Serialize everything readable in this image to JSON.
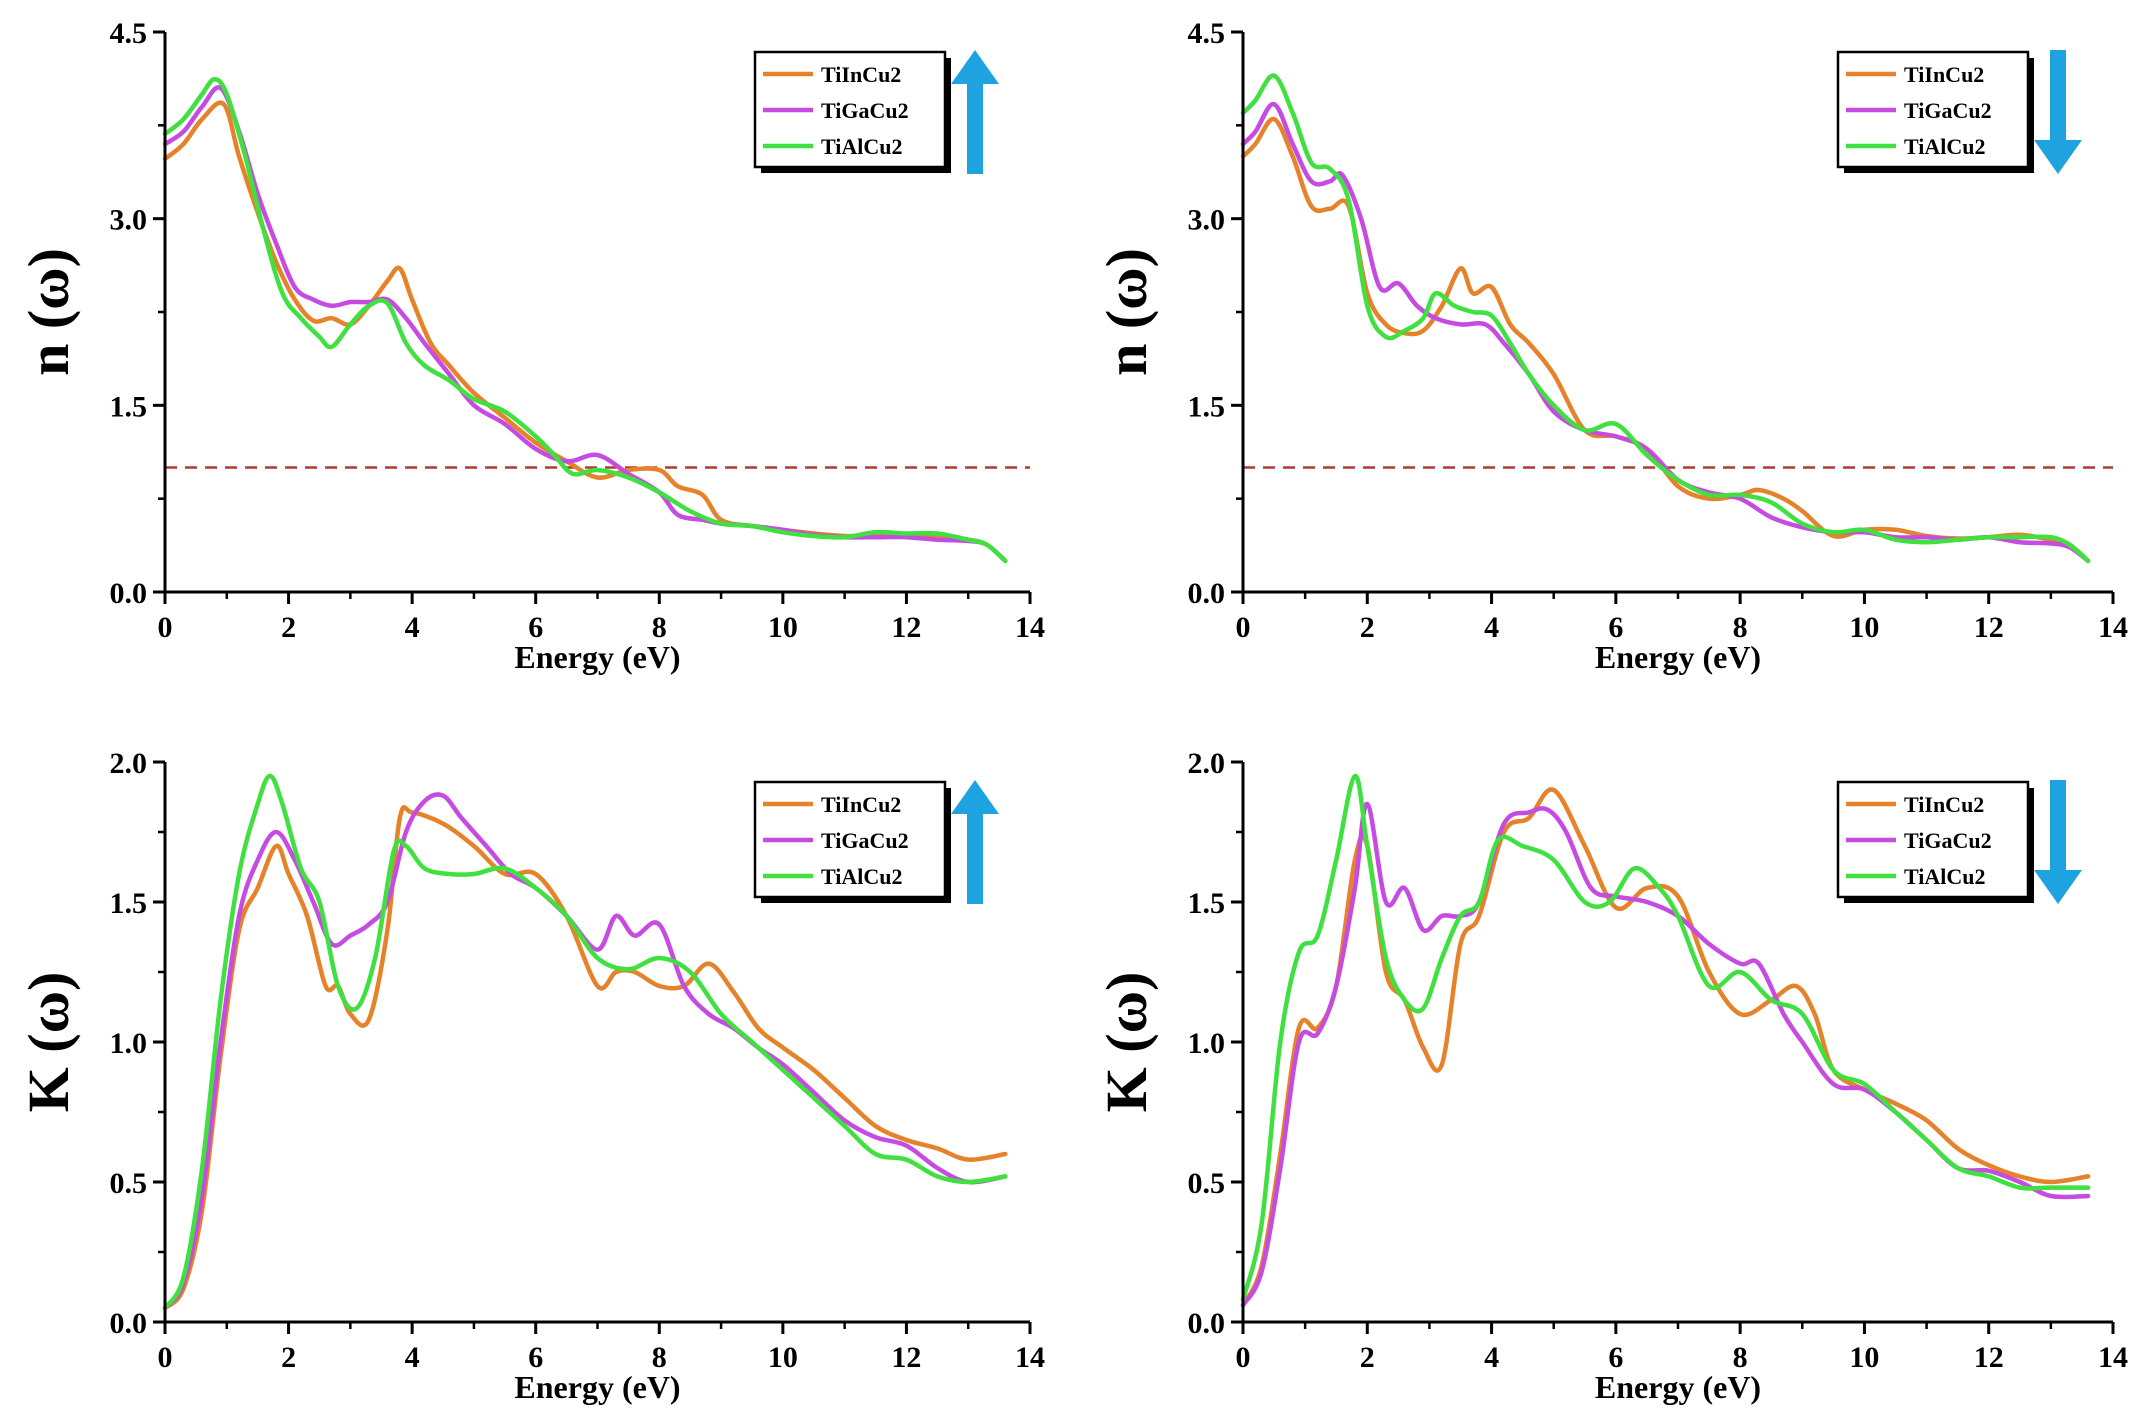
{
  "colors": {
    "TiInCu2": "#E5822A",
    "TiGaCu2": "#C64BE0",
    "TiAlCu2": "#3FE03F",
    "arrow": "#1FA3E0",
    "refline": "#B03A2E"
  },
  "chart_data": [
    {
      "type": "line",
      "id": "n-up",
      "spin": "up",
      "ylabel": "n (ω)",
      "xlabel": "Energy (eV)",
      "xlim": [
        0,
        14
      ],
      "ylim": [
        0,
        4.5
      ],
      "xticks": [
        "0",
        "2",
        "4",
        "6",
        "8",
        "10",
        "12",
        "14"
      ],
      "yticks": [
        "0.0",
        "1.5",
        "3.0",
        "4.5"
      ],
      "ref_line": 1.0,
      "series": [
        {
          "name": "TiInCu2",
          "color": "#E5822A",
          "x": [
            0,
            0.3,
            0.6,
            0.95,
            1.2,
            1.5,
            1.8,
            2.1,
            2.4,
            2.7,
            3.0,
            3.3,
            3.6,
            3.8,
            4.0,
            4.3,
            4.6,
            5.0,
            5.5,
            6.0,
            6.5,
            7.0,
            7.5,
            8.0,
            8.3,
            8.7,
            9.0,
            9.5,
            10,
            10.5,
            11,
            11.5,
            12,
            12.5,
            13,
            13.3,
            13.6
          ],
          "y": [
            3.48,
            3.6,
            3.8,
            3.92,
            3.5,
            3.05,
            2.65,
            2.35,
            2.18,
            2.2,
            2.15,
            2.3,
            2.5,
            2.6,
            2.35,
            2.0,
            1.82,
            1.6,
            1.4,
            1.2,
            1.05,
            0.92,
            0.98,
            0.98,
            0.85,
            0.78,
            0.58,
            0.53,
            0.5,
            0.47,
            0.45,
            0.45,
            0.45,
            0.44,
            0.42,
            0.38,
            0.25
          ]
        },
        {
          "name": "TiGaCu2",
          "color": "#C64BE0",
          "x": [
            0,
            0.3,
            0.6,
            0.9,
            1.2,
            1.5,
            1.8,
            2.1,
            2.4,
            2.7,
            3.0,
            3.3,
            3.6,
            3.9,
            4.2,
            4.6,
            5.0,
            5.5,
            6.0,
            6.5,
            7.0,
            7.5,
            8.0,
            8.3,
            8.7,
            9.0,
            9.5,
            10,
            10.5,
            11,
            11.5,
            12,
            12.5,
            13,
            13.3,
            13.6
          ],
          "y": [
            3.6,
            3.7,
            3.9,
            4.05,
            3.7,
            3.2,
            2.8,
            2.45,
            2.35,
            2.3,
            2.33,
            2.33,
            2.35,
            2.2,
            2.0,
            1.75,
            1.5,
            1.35,
            1.15,
            1.05,
            1.1,
            0.95,
            0.8,
            0.62,
            0.58,
            0.55,
            0.53,
            0.5,
            0.46,
            0.44,
            0.44,
            0.44,
            0.42,
            0.41,
            0.38,
            0.25
          ]
        },
        {
          "name": "TiAlCu2",
          "color": "#3FE03F",
          "x": [
            0,
            0.3,
            0.6,
            0.8,
            1.0,
            1.3,
            1.6,
            1.9,
            2.2,
            2.5,
            2.7,
            3.0,
            3.3,
            3.6,
            3.9,
            4.2,
            4.6,
            5.0,
            5.5,
            6.0,
            6.3,
            6.6,
            7.0,
            7.5,
            8.0,
            8.5,
            9.0,
            9.5,
            10,
            10.5,
            11,
            11.5,
            12,
            12.5,
            13,
            13.3,
            13.6
          ],
          "y": [
            3.68,
            3.8,
            4.0,
            4.12,
            4.0,
            3.5,
            2.9,
            2.4,
            2.2,
            2.05,
            1.97,
            2.15,
            2.3,
            2.32,
            2.0,
            1.82,
            1.7,
            1.55,
            1.45,
            1.25,
            1.1,
            0.95,
            0.98,
            0.92,
            0.8,
            0.65,
            0.55,
            0.53,
            0.48,
            0.45,
            0.44,
            0.48,
            0.47,
            0.47,
            0.42,
            0.38,
            0.25
          ]
        }
      ]
    },
    {
      "type": "line",
      "id": "n-down",
      "spin": "down",
      "ylabel": "n (ω)",
      "xlabel": "Energy (eV)",
      "xlim": [
        0,
        14
      ],
      "ylim": [
        0,
        4.5
      ],
      "xticks": [
        "0",
        "2",
        "4",
        "6",
        "8",
        "10",
        "12",
        "14"
      ],
      "yticks": [
        "0.0",
        "1.5",
        "3.0",
        "4.5"
      ],
      "ref_line": 1.0,
      "series": [
        {
          "name": "TiInCu2",
          "color": "#E5822A",
          "x": [
            0,
            0.2,
            0.5,
            0.8,
            1.1,
            1.4,
            1.7,
            2.0,
            2.3,
            2.6,
            2.9,
            3.2,
            3.5,
            3.7,
            4.0,
            4.3,
            4.6,
            5.0,
            5.5,
            6.0,
            6.5,
            7.0,
            7.5,
            8.0,
            8.3,
            8.7,
            9.0,
            9.5,
            10,
            10.5,
            11,
            11.5,
            12,
            12.5,
            13,
            13.3,
            13.6
          ],
          "y": [
            3.5,
            3.6,
            3.8,
            3.5,
            3.1,
            3.08,
            3.1,
            2.4,
            2.15,
            2.08,
            2.1,
            2.3,
            2.6,
            2.4,
            2.45,
            2.15,
            2.0,
            1.75,
            1.3,
            1.25,
            1.15,
            0.85,
            0.75,
            0.78,
            0.82,
            0.75,
            0.65,
            0.45,
            0.5,
            0.5,
            0.45,
            0.43,
            0.44,
            0.46,
            0.42,
            0.38,
            0.25
          ]
        },
        {
          "name": "TiGaCu2",
          "color": "#C64BE0",
          "x": [
            0,
            0.2,
            0.5,
            0.8,
            1.1,
            1.4,
            1.6,
            1.9,
            2.2,
            2.5,
            2.8,
            3.1,
            3.5,
            3.9,
            4.2,
            4.6,
            5.0,
            5.5,
            6.0,
            6.5,
            7.0,
            7.5,
            8.0,
            8.5,
            9.0,
            9.5,
            10,
            10.5,
            11,
            11.5,
            12,
            12.5,
            13,
            13.3,
            13.6
          ],
          "y": [
            3.6,
            3.7,
            3.92,
            3.6,
            3.3,
            3.3,
            3.35,
            3.0,
            2.45,
            2.48,
            2.3,
            2.2,
            2.15,
            2.15,
            2.0,
            1.75,
            1.45,
            1.3,
            1.25,
            1.15,
            0.9,
            0.8,
            0.75,
            0.6,
            0.52,
            0.48,
            0.48,
            0.44,
            0.44,
            0.42,
            0.44,
            0.4,
            0.39,
            0.36,
            0.25
          ]
        },
        {
          "name": "TiAlCu2",
          "color": "#3FE03F",
          "x": [
            0,
            0.2,
            0.5,
            0.8,
            1.1,
            1.4,
            1.7,
            2.0,
            2.3,
            2.6,
            2.9,
            3.1,
            3.4,
            3.7,
            4.0,
            4.3,
            4.6,
            5.0,
            5.5,
            6.0,
            6.5,
            7.0,
            7.5,
            8.0,
            8.5,
            9.0,
            9.5,
            10,
            10.5,
            11,
            11.5,
            12,
            12.5,
            13,
            13.3,
            13.6
          ],
          "y": [
            3.85,
            3.95,
            4.15,
            3.85,
            3.45,
            3.4,
            3.15,
            2.3,
            2.05,
            2.1,
            2.2,
            2.4,
            2.3,
            2.25,
            2.22,
            2.0,
            1.75,
            1.5,
            1.3,
            1.35,
            1.1,
            0.9,
            0.78,
            0.78,
            0.72,
            0.55,
            0.48,
            0.5,
            0.42,
            0.4,
            0.42,
            0.44,
            0.44,
            0.44,
            0.38,
            0.25
          ]
        }
      ]
    },
    {
      "type": "line",
      "id": "k-up",
      "spin": "up",
      "ylabel": "K (ω)",
      "xlabel": "Energy (eV)",
      "xlim": [
        0,
        14
      ],
      "ylim": [
        0,
        2.0
      ],
      "xticks": [
        "0",
        "2",
        "4",
        "6",
        "8",
        "10",
        "12",
        "14"
      ],
      "yticks": [
        "0.0",
        "0.5",
        "1.0",
        "1.5",
        "2.0"
      ],
      "series": [
        {
          "name": "TiInCu2",
          "color": "#E5822A",
          "x": [
            0,
            0.3,
            0.6,
            0.9,
            1.2,
            1.5,
            1.8,
            2.0,
            2.3,
            2.6,
            2.8,
            3.0,
            3.3,
            3.6,
            3.8,
            4.0,
            4.5,
            5.0,
            5.5,
            6.0,
            6.5,
            7.0,
            7.3,
            7.6,
            8.0,
            8.4,
            8.8,
            9.2,
            9.6,
            10,
            10.5,
            11,
            11.5,
            12,
            12.5,
            13,
            13.6
          ],
          "y": [
            0.05,
            0.12,
            0.4,
            0.95,
            1.4,
            1.55,
            1.7,
            1.6,
            1.45,
            1.2,
            1.2,
            1.1,
            1.08,
            1.4,
            1.8,
            1.82,
            1.78,
            1.7,
            1.6,
            1.6,
            1.45,
            1.2,
            1.25,
            1.25,
            1.2,
            1.2,
            1.28,
            1.18,
            1.05,
            0.98,
            0.9,
            0.8,
            0.7,
            0.65,
            0.62,
            0.58,
            0.6
          ]
        },
        {
          "name": "TiGaCu2",
          "color": "#C64BE0",
          "x": [
            0,
            0.3,
            0.6,
            0.9,
            1.2,
            1.5,
            1.8,
            2.1,
            2.4,
            2.7,
            3.0,
            3.3,
            3.6,
            3.9,
            4.2,
            4.5,
            4.8,
            5.2,
            5.6,
            6.0,
            6.5,
            7.0,
            7.3,
            7.6,
            8.0,
            8.4,
            8.8,
            9.2,
            9.6,
            10,
            10.5,
            11,
            11.5,
            12,
            12.5,
            13,
            13.6
          ],
          "y": [
            0.05,
            0.14,
            0.45,
            1.0,
            1.45,
            1.65,
            1.75,
            1.65,
            1.5,
            1.35,
            1.38,
            1.42,
            1.5,
            1.75,
            1.86,
            1.88,
            1.8,
            1.7,
            1.6,
            1.55,
            1.45,
            1.33,
            1.45,
            1.38,
            1.42,
            1.2,
            1.1,
            1.05,
            0.98,
            0.92,
            0.82,
            0.72,
            0.66,
            0.63,
            0.55,
            0.5,
            0.52
          ]
        },
        {
          "name": "TiAlCu2",
          "color": "#3FE03F",
          "x": [
            0,
            0.3,
            0.6,
            0.9,
            1.2,
            1.5,
            1.7,
            1.9,
            2.2,
            2.5,
            2.8,
            3.1,
            3.4,
            3.7,
            3.9,
            4.2,
            4.6,
            5.0,
            5.5,
            6.0,
            6.5,
            7.0,
            7.5,
            8.0,
            8.5,
            9.0,
            9.5,
            10,
            10.5,
            11,
            11.5,
            12,
            12.5,
            13,
            13.6
          ],
          "y": [
            0.05,
            0.16,
            0.55,
            1.15,
            1.6,
            1.85,
            1.95,
            1.85,
            1.62,
            1.5,
            1.2,
            1.12,
            1.3,
            1.68,
            1.7,
            1.62,
            1.6,
            1.6,
            1.62,
            1.55,
            1.45,
            1.3,
            1.26,
            1.3,
            1.25,
            1.1,
            1.0,
            0.9,
            0.8,
            0.7,
            0.6,
            0.58,
            0.52,
            0.5,
            0.52
          ]
        }
      ]
    },
    {
      "type": "line",
      "id": "k-down",
      "spin": "down",
      "ylabel": "K (ω)",
      "xlabel": "Energy (eV)",
      "xlim": [
        0,
        14
      ],
      "ylim": [
        0,
        2.0
      ],
      "xticks": [
        "0",
        "2",
        "4",
        "6",
        "8",
        "10",
        "12",
        "14"
      ],
      "yticks": [
        "0.0",
        "0.5",
        "1.0",
        "1.5",
        "2.0"
      ],
      "series": [
        {
          "name": "TiInCu2",
          "color": "#E5822A",
          "x": [
            0,
            0.3,
            0.6,
            0.9,
            1.2,
            1.5,
            1.8,
            2.0,
            2.3,
            2.6,
            2.9,
            3.2,
            3.5,
            3.8,
            4.2,
            4.6,
            5.0,
            5.5,
            6.0,
            6.5,
            7.0,
            7.5,
            8.0,
            8.5,
            8.9,
            9.2,
            9.5,
            10,
            10.5,
            11,
            11.5,
            12,
            12.5,
            13,
            13.6
          ],
          "y": [
            0.06,
            0.2,
            0.6,
            1.05,
            1.05,
            1.2,
            1.65,
            1.7,
            1.25,
            1.15,
            0.98,
            0.92,
            1.35,
            1.45,
            1.75,
            1.8,
            1.9,
            1.7,
            1.48,
            1.55,
            1.52,
            1.25,
            1.1,
            1.15,
            1.2,
            1.1,
            0.9,
            0.83,
            0.78,
            0.72,
            0.62,
            0.56,
            0.52,
            0.5,
            0.52
          ]
        },
        {
          "name": "TiGaCu2",
          "color": "#C64BE0",
          "x": [
            0,
            0.3,
            0.6,
            0.9,
            1.2,
            1.5,
            1.8,
            2.0,
            2.3,
            2.6,
            2.9,
            3.2,
            3.5,
            3.8,
            4.2,
            4.6,
            4.9,
            5.2,
            5.6,
            6.0,
            6.5,
            7.0,
            7.5,
            8.0,
            8.3,
            8.7,
            9.0,
            9.5,
            10,
            10.5,
            11,
            11.5,
            12,
            12.5,
            13,
            13.6
          ],
          "y": [
            0.06,
            0.18,
            0.55,
            1.0,
            1.03,
            1.2,
            1.55,
            1.85,
            1.5,
            1.55,
            1.4,
            1.45,
            1.45,
            1.5,
            1.78,
            1.82,
            1.83,
            1.75,
            1.55,
            1.52,
            1.5,
            1.45,
            1.35,
            1.28,
            1.28,
            1.1,
            1.0,
            0.85,
            0.83,
            0.75,
            0.65,
            0.55,
            0.54,
            0.5,
            0.45,
            0.45
          ]
        },
        {
          "name": "TiAlCu2",
          "color": "#3FE03F",
          "x": [
            0,
            0.3,
            0.6,
            0.9,
            1.2,
            1.5,
            1.8,
            2.0,
            2.3,
            2.6,
            2.9,
            3.2,
            3.5,
            3.8,
            4.1,
            4.5,
            5.0,
            5.5,
            5.9,
            6.3,
            6.7,
            7.0,
            7.5,
            8.0,
            8.5,
            9.0,
            9.5,
            10,
            10.5,
            11,
            11.5,
            12,
            12.5,
            13,
            13.6
          ],
          "y": [
            0.08,
            0.35,
            1.0,
            1.32,
            1.38,
            1.65,
            1.95,
            1.7,
            1.3,
            1.15,
            1.12,
            1.3,
            1.45,
            1.5,
            1.72,
            1.7,
            1.65,
            1.5,
            1.5,
            1.62,
            1.55,
            1.45,
            1.2,
            1.25,
            1.15,
            1.1,
            0.9,
            0.85,
            0.75,
            0.65,
            0.55,
            0.52,
            0.48,
            0.48,
            0.48
          ]
        }
      ]
    }
  ]
}
